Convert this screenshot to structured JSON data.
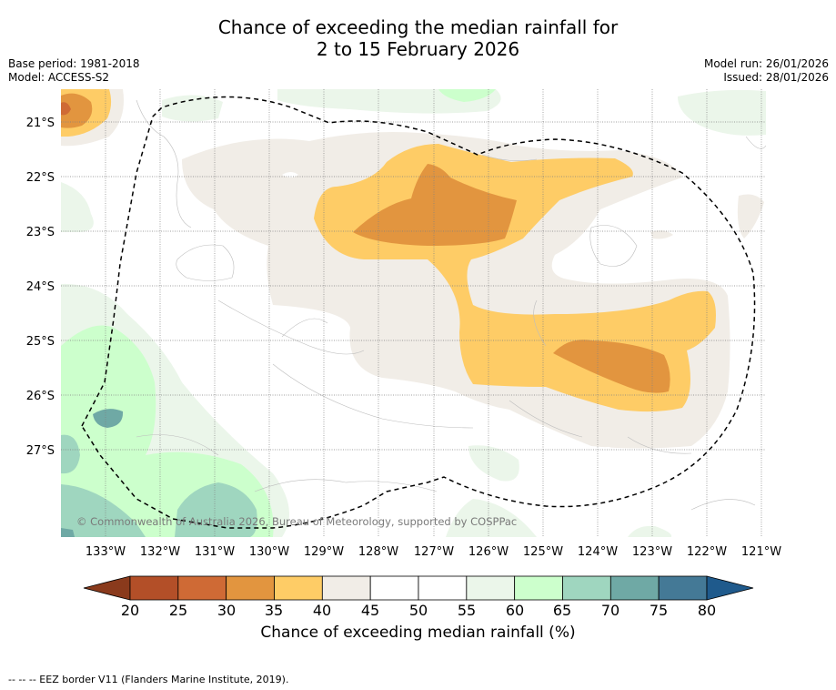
{
  "title_line1": "Chance of exceeding the median rainfall for",
  "title_line2": "2 to 15 February 2026",
  "meta_left": [
    "Base period: 1981-2018",
    "Model: ACCESS-S2"
  ],
  "meta_right": [
    "Model run: 26/01/2026",
    "Issued: 28/01/2026"
  ],
  "copyright": "© Commonwealth of Australia 2026, Bureau of Meteorology, supported by COSPPac",
  "lat_labels": [
    "21°S",
    "22°S",
    "23°S",
    "24°S",
    "25°S",
    "26°S",
    "27°S"
  ],
  "lon_labels": [
    "133°W",
    "132°W",
    "131°W",
    "130°W",
    "129°W",
    "128°W",
    "127°W",
    "126°W",
    "125°W",
    "124°W",
    "123°W",
    "122°W",
    "121°W"
  ],
  "colorbar": {
    "ticks": [
      "20",
      "25",
      "30",
      "35",
      "40",
      "45",
      "50",
      "55",
      "60",
      "65",
      "70",
      "75",
      "80"
    ],
    "colors": [
      "#b34f28",
      "#cf6a35",
      "#e2953f",
      "#fecc66",
      "#f1ede7",
      "#ffffff",
      "#ffffff",
      "#ebf6ea",
      "#ccffcc",
      "#9fd6bf",
      "#6fa9a5",
      "#447996"
    ],
    "low_color": "#8a3a1c",
    "high_color": "#1f5a8c",
    "label": "Chance of exceeding median rainfall (%)"
  },
  "map_colors": {
    "orange_dark": "#e2953f",
    "orange_light": "#fecc66",
    "beige": "#f1ede7",
    "green_pale": "#ebf6ea",
    "green_light": "#ccffcc",
    "teal_light": "#9fd6bf",
    "teal_mid": "#6fa9a5"
  },
  "footer": "--  --  -- EEZ border V11 (Flanders Marine Institute, 2019)."
}
